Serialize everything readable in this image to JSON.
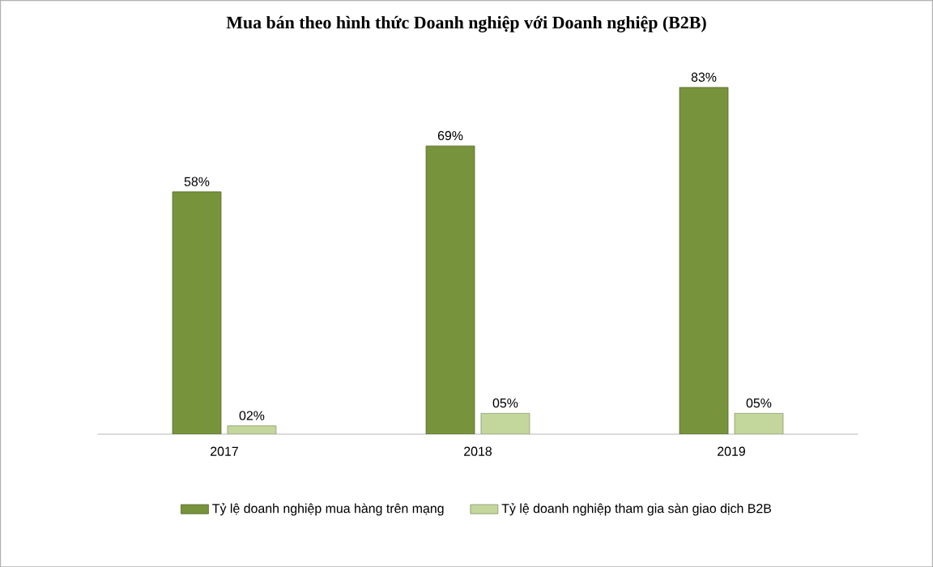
{
  "chart_data": {
    "type": "bar",
    "title": "Mua bán theo hình thức Doanh nghiệp với Doanh nghiệp (B2B)",
    "categories": [
      "2017",
      "2018",
      "2019"
    ],
    "series": [
      {
        "name": "Tỷ lệ doanh nghiệp mua hàng trên mạng",
        "color": "#77933c",
        "values": [
          58,
          69,
          83
        ],
        "value_labels": [
          "58%",
          "69%",
          "83%"
        ]
      },
      {
        "name": "Tỷ lệ doanh nghiệp tham gia sàn giao dịch B2B",
        "color": "#c3d69b",
        "values": [
          2,
          5,
          5
        ],
        "value_labels": [
          "02%",
          "05%",
          "05%"
        ]
      }
    ],
    "legend": "bottom",
    "grid": false
  }
}
